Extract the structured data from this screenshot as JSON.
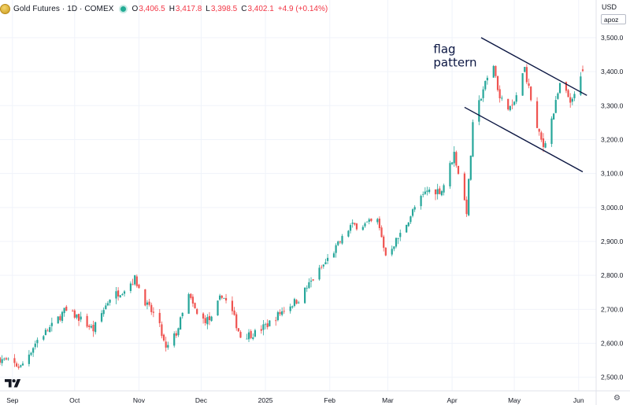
{
  "header": {
    "title": "Gold Futures · 1D · COMEX",
    "open_label": "O",
    "open": "3,406.5",
    "high_label": "H",
    "high": "3,417.8",
    "low_label": "L",
    "low": "3,398.5",
    "close_label": "C",
    "close": "3,402.1",
    "change": "+4.9 (+0.14%)"
  },
  "currency": "USD",
  "unit": "apoz",
  "colors": {
    "up": "#26a69a",
    "down": "#ef5350",
    "annotation": "#0b1642",
    "grid": "#f0f3fa"
  },
  "icons": {
    "logo": "gold-coin-icon",
    "status": "market-status-dot-icon",
    "brand": "tradingview-logo-icon",
    "settings": "gear-icon"
  },
  "chart_data": {
    "type": "candlestick",
    "ylim": [
      2460,
      3560
    ],
    "y_ticks": [
      2500,
      2600,
      2700,
      2800,
      2900,
      3000,
      3100,
      3200,
      3300,
      3400,
      3500
    ],
    "y_tick_labels": [
      "2,500.0",
      "2,600.0",
      "2,700.0",
      "2,800.0",
      "2,900.0",
      "3,000.0",
      "3,100.0",
      "3,200.0",
      "3,300.0",
      "3,400.0",
      "3,500.0"
    ],
    "x_tick_labels": [
      "Sep",
      "Oct",
      "Nov",
      "Dec",
      "2025",
      "Feb",
      "Mar",
      "Apr",
      "May",
      "Jun"
    ],
    "x_tick_dates": [
      "2024-09-01",
      "2024-10-01",
      "2024-11-01",
      "2024-12-01",
      "2025-01-01",
      "2025-02-01",
      "2025-03-01",
      "2025-04-01",
      "2025-05-01",
      "2025-06-01"
    ],
    "first_date": "2024-08-26",
    "last_date": "2025-06-03",
    "close_anchors": [
      [
        "2024-08-26",
        2555
      ],
      [
        "2024-09-05",
        2530
      ],
      [
        "2024-09-13",
        2610
      ],
      [
        "2024-09-20",
        2650
      ],
      [
        "2024-09-26",
        2695
      ],
      [
        "2024-10-02",
        2680
      ],
      [
        "2024-10-10",
        2640
      ],
      [
        "2024-10-18",
        2735
      ],
      [
        "2024-10-25",
        2760
      ],
      [
        "2024-10-30",
        2790
      ],
      [
        "2024-11-05",
        2710
      ],
      [
        "2024-11-10",
        2670
      ],
      [
        "2024-11-14",
        2580
      ],
      [
        "2024-11-19",
        2630
      ],
      [
        "2024-11-25",
        2740
      ],
      [
        "2024-11-30",
        2670
      ],
      [
        "2024-12-06",
        2670
      ],
      [
        "2024-12-11",
        2745
      ],
      [
        "2024-12-16",
        2690
      ],
      [
        "2024-12-20",
        2620
      ],
      [
        "2024-12-27",
        2630
      ],
      [
        "2025-01-03",
        2660
      ],
      [
        "2025-01-10",
        2700
      ],
      [
        "2025-01-17",
        2730
      ],
      [
        "2025-01-24",
        2790
      ],
      [
        "2025-01-29",
        2830
      ],
      [
        "2025-02-04",
        2880
      ],
      [
        "2025-02-11",
        2945
      ],
      [
        "2025-02-18",
        2950
      ],
      [
        "2025-02-24",
        2960
      ],
      [
        "2025-02-28",
        2860
      ],
      [
        "2025-03-07",
        2920
      ],
      [
        "2025-03-14",
        3000
      ],
      [
        "2025-03-20",
        3050
      ],
      [
        "2025-03-27",
        3050
      ],
      [
        "2025-04-02",
        3160
      ],
      [
        "2025-04-08",
        2990
      ],
      [
        "2025-04-11",
        3240
      ],
      [
        "2025-04-16",
        3350
      ],
      [
        "2025-04-21",
        3420
      ],
      [
        "2025-04-24",
        3320
      ],
      [
        "2025-04-30",
        3290
      ],
      [
        "2025-05-06",
        3410
      ],
      [
        "2025-05-12",
        3230
      ],
      [
        "2025-05-15",
        3180
      ],
      [
        "2025-05-20",
        3280
      ],
      [
        "2025-05-23",
        3360
      ],
      [
        "2025-05-29",
        3310
      ],
      [
        "2025-06-03",
        3402.1
      ]
    ],
    "last_candle": {
      "open": 3406.5,
      "high": 3417.8,
      "low": 3398.5,
      "close": 3402.1
    },
    "trendlines": [
      {
        "name": "upper",
        "from": [
          "2025-04-15",
          3500
        ],
        "to": [
          "2025-06-05",
          3330
        ]
      },
      {
        "name": "lower",
        "from": [
          "2025-04-07",
          3295
        ],
        "to": [
          "2025-06-03",
          3105
        ]
      }
    ],
    "annotation": {
      "line1": "flag",
      "line2": "pattern",
      "date": "2025-03-23",
      "value": 3455
    }
  }
}
